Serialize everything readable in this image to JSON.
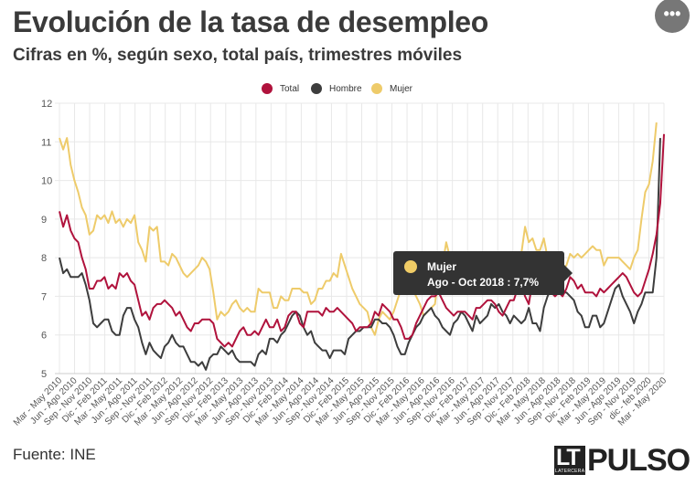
{
  "header": {
    "title": "Evolución de la tasa de desempleo",
    "subtitle": "Cifras en %, según sexo, total país, trimestres móviles",
    "menu_icon": "•••"
  },
  "footer": {
    "source": "Fuente: INE",
    "logo_lt": "LT",
    "logo_sub": "LATERCERA",
    "logo_name": "PULSO"
  },
  "tooltip": {
    "series": "Mujer",
    "text": "Ago - Oct 2018 : 7,7%",
    "color": "#f0cc66"
  },
  "colors": {
    "Total": "#b0123c",
    "Hombre": "#3d3d3d",
    "Mujer": "#eecb6a",
    "grid": "#e8e8e8",
    "axis": "#cccccc"
  },
  "chart_data": {
    "type": "line",
    "title": "Evolución de la tasa de desempleo",
    "subtitle": "Cifras en %, según sexo, total país, trimestres móviles",
    "ylim": [
      5,
      12
    ],
    "yticks": [
      5,
      6,
      7,
      8,
      9,
      10,
      11,
      12
    ],
    "legend_position": "top-center",
    "grid": true,
    "xticklabels": [
      "Mar - May 2010",
      "Jun - Ago 2010",
      "Sep - Nov 2010",
      "Dic - Feb 2011",
      "Mar - May 2011",
      "Jun - Ago 2011",
      "Sep - Nov 2011",
      "Dic - Feb 2012",
      "Mar - May 2012",
      "Jun - Ago 2012",
      "Sep - Nov 2012",
      "Dic - Feb 2013",
      "Mar - May 2013",
      "Jun - Ago 2013",
      "Sep - Nov 2013",
      "Dic - Feb 2014",
      "Mar - May 2014",
      "Jun - Ago 2014",
      "Sep - Nov 2014",
      "Dic - Feb 2015",
      "Mar - May 2015",
      "Jun - Ago 2015",
      "Sep - Nov 2015",
      "Dic - Feb 2016",
      "Mar - May 2016",
      "Jun - Ago 2016",
      "Sep - Nov 2016",
      "Dic - Feb 2017",
      "Mar - May 2017",
      "Jun - Ago 2017",
      "Sep - Nov 2017",
      "Dic - Feb 2018",
      "Mar - May 2018",
      "Jun - Ago 2018",
      "Sep - Nov 2018",
      "Dic - Feb 2019",
      "Mar - May 2019",
      "Jun - Ago 2019",
      "Sep - Nov 2019",
      "dic - feb 2020",
      "Mar - May 2020"
    ],
    "series": [
      {
        "name": "Total",
        "values": [
          9.2,
          8.8,
          9.1,
          8.7,
          8.5,
          8.4,
          8.0,
          7.7,
          7.2,
          7.2,
          7.4,
          7.4,
          7.5,
          7.2,
          7.3,
          7.2,
          7.6,
          7.5,
          7.6,
          7.4,
          7.3,
          6.9,
          6.5,
          6.6,
          6.4,
          6.7,
          6.8,
          6.8,
          6.9,
          6.8,
          6.7,
          6.5,
          6.6,
          6.4,
          6.2,
          6.1,
          6.3,
          6.3,
          6.4,
          6.4,
          6.4,
          6.3,
          5.9,
          5.8,
          5.7,
          5.8,
          5.7,
          5.9,
          6.1,
          6.2,
          6.0,
          6.0,
          6.1,
          6.0,
          6.2,
          6.4,
          6.2,
          6.2,
          6.4,
          6.1,
          6.2,
          6.5,
          6.6,
          6.6,
          6.3,
          6.2,
          6.6,
          6.6,
          6.6,
          6.6,
          6.5,
          6.7,
          6.6,
          6.6,
          6.7,
          6.6,
          6.5,
          6.4,
          6.3,
          6.1,
          6.2,
          6.2,
          6.2,
          6.3,
          6.6,
          6.5,
          6.8,
          6.7,
          6.6,
          6.4,
          6.4,
          6.2,
          5.9,
          5.9,
          6.0,
          6.3,
          6.5,
          6.7,
          6.9,
          7.0,
          7.0,
          7.1,
          6.9,
          6.7,
          6.6,
          6.5,
          6.6,
          6.6,
          6.6,
          6.5,
          6.4,
          6.7,
          6.7,
          6.8,
          6.9,
          6.9,
          6.8,
          6.6,
          6.5,
          6.7,
          6.9,
          6.9,
          7.2,
          7.3,
          7.0,
          6.8,
          7.4,
          7.1,
          7.3,
          7.1,
          7.3,
          7.1,
          7.0,
          7.1,
          7.0,
          7.2,
          7.5,
          7.4,
          7.2,
          7.3,
          7.1,
          7.1,
          7.1,
          7.0,
          7.2,
          7.1,
          7.2,
          7.3,
          7.4,
          7.5,
          7.6,
          7.5,
          7.3,
          7.1,
          7.0,
          7.1,
          7.4,
          7.7,
          8.1,
          8.6,
          9.4,
          11.2
        ]
      },
      {
        "name": "Hombre",
        "values": [
          8.0,
          7.6,
          7.7,
          7.5,
          7.5,
          7.5,
          7.6,
          7.3,
          6.9,
          6.3,
          6.2,
          6.3,
          6.4,
          6.4,
          6.1,
          6.0,
          6.0,
          6.5,
          6.7,
          6.7,
          6.4,
          6.2,
          5.8,
          5.5,
          5.8,
          5.6,
          5.5,
          5.4,
          5.7,
          5.8,
          6.0,
          5.8,
          5.7,
          5.7,
          5.5,
          5.3,
          5.3,
          5.2,
          5.3,
          5.1,
          5.4,
          5.5,
          5.5,
          5.7,
          5.6,
          5.5,
          5.6,
          5.4,
          5.3,
          5.3,
          5.3,
          5.3,
          5.2,
          5.5,
          5.6,
          5.5,
          5.9,
          5.9,
          5.8,
          6.0,
          6.1,
          6.3,
          6.5,
          6.6,
          6.5,
          6.2,
          6.0,
          6.1,
          5.8,
          5.7,
          5.6,
          5.6,
          5.4,
          5.6,
          5.6,
          5.6,
          5.5,
          5.9,
          6.0,
          6.1,
          6.1,
          6.2,
          6.2,
          6.2,
          6.4,
          6.4,
          6.3,
          6.3,
          6.2,
          6.0,
          5.7,
          5.5,
          5.5,
          5.8,
          6.0,
          6.2,
          6.3,
          6.5,
          6.6,
          6.7,
          6.5,
          6.4,
          6.2,
          6.1,
          6.0,
          6.3,
          6.4,
          6.6,
          6.5,
          6.3,
          6.1,
          6.5,
          6.3,
          6.4,
          6.5,
          6.8,
          6.7,
          6.8,
          6.6,
          6.5,
          6.3,
          6.5,
          6.4,
          6.3,
          6.4,
          6.7,
          6.3,
          6.3,
          6.1,
          6.7,
          7.0,
          7.2,
          7.2,
          7.2,
          7.1,
          7.1,
          7.0,
          6.9,
          6.6,
          6.5,
          6.2,
          6.2,
          6.5,
          6.5,
          6.2,
          6.3,
          6.6,
          6.9,
          7.2,
          7.3,
          7.0,
          6.8,
          6.6,
          6.3,
          6.6,
          6.8,
          7.1,
          7.1,
          7.1,
          8.0,
          11.1
        ]
      },
      {
        "name": "Mujer",
        "values": [
          11.1,
          10.8,
          11.1,
          10.4,
          10.0,
          9.7,
          9.3,
          9.1,
          8.6,
          8.7,
          9.1,
          9.0,
          9.1,
          8.9,
          9.2,
          8.9,
          9.0,
          8.8,
          9.0,
          8.9,
          9.1,
          8.4,
          8.2,
          7.9,
          8.8,
          8.7,
          8.8,
          7.9,
          7.9,
          7.8,
          8.1,
          8.0,
          7.8,
          7.6,
          7.5,
          7.6,
          7.7,
          7.8,
          8.0,
          7.9,
          7.7,
          7.1,
          6.4,
          6.6,
          6.5,
          6.6,
          6.8,
          6.9,
          6.7,
          6.6,
          6.7,
          6.6,
          6.6,
          7.2,
          7.1,
          7.1,
          7.1,
          6.7,
          6.7,
          7.0,
          6.9,
          6.9,
          7.2,
          7.2,
          7.2,
          7.1,
          7.1,
          6.8,
          6.9,
          7.2,
          7.2,
          7.4,
          7.4,
          7.6,
          7.5,
          8.1,
          7.8,
          7.5,
          7.2,
          7.0,
          6.8,
          6.7,
          6.6,
          6.2,
          6.0,
          6.4,
          6.6,
          6.5,
          6.4,
          6.6,
          6.9,
          7.2,
          7.6,
          7.5,
          7.2,
          7.0,
          6.8,
          6.5,
          6.6,
          6.7,
          6.8,
          7.6,
          7.8,
          8.4,
          8.0,
          7.9,
          7.7,
          7.5,
          7.3,
          7.2,
          7.1,
          7.2,
          7.5,
          7.4,
          7.2,
          7.4,
          7.2,
          7.2,
          7.3,
          7.5,
          7.6,
          7.7,
          7.7,
          8.1,
          8.8,
          8.4,
          8.5,
          8.2,
          8.2,
          8.5,
          8.0,
          7.8,
          7.7,
          7.6,
          7.7,
          7.8,
          8.1,
          8.0,
          8.1,
          8.0,
          8.1,
          8.2,
          8.3,
          8.2,
          8.2,
          7.8,
          8.0,
          8.0,
          8.0,
          8.0,
          7.9,
          7.8,
          7.7,
          8.0,
          8.2,
          9.0,
          9.7,
          9.9,
          10.5,
          11.5
        ]
      }
    ]
  }
}
